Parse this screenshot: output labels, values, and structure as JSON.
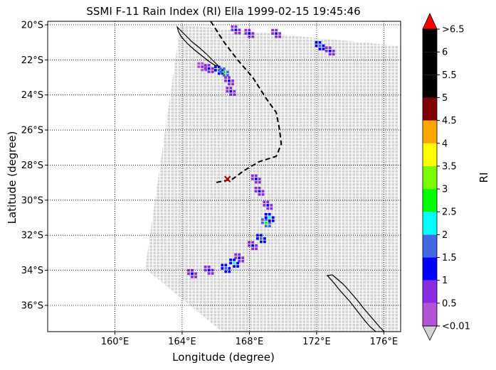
{
  "chart_data": {
    "type": "heatmap",
    "title": "SSMI F-11 Rain Index (RI) Ella 1999-02-15 19:45:46",
    "xlabel": "Longitude (degree)",
    "ylabel": "Latitude (degree)",
    "xlim": [
      156.0,
      177.0
    ],
    "ylim": [
      -37.5,
      -19.8
    ],
    "grid": true,
    "x_ticks": [
      {
        "value": 160,
        "label": "160°E"
      },
      {
        "value": 164,
        "label": "164°E"
      },
      {
        "value": 168,
        "label": "168°E"
      },
      {
        "value": 172,
        "label": "172°E"
      },
      {
        "value": 176,
        "label": "176°E"
      }
    ],
    "y_ticks": [
      {
        "value": -20,
        "label": "20°S"
      },
      {
        "value": -22,
        "label": "22°S"
      },
      {
        "value": -24,
        "label": "24°S"
      },
      {
        "value": -26,
        "label": "26°S"
      },
      {
        "value": -28,
        "label": "28°S"
      },
      {
        "value": -30,
        "label": "30°S"
      },
      {
        "value": -32,
        "label": "32°S"
      },
      {
        "value": -34,
        "label": "34°S"
      },
      {
        "value": -36,
        "label": "36°S"
      }
    ],
    "colorbar": {
      "label": "RI",
      "under_label": "<0.01",
      "over_label": ">6.5",
      "under_color": "#d3d3d3",
      "over_color": "#ff0000",
      "bounds": [
        0.01,
        0.5,
        1,
        1.5,
        2,
        2.5,
        3,
        3.5,
        4,
        4.5,
        5,
        5.5,
        6,
        6.5
      ],
      "tick_labels": [
        "<0.01",
        "0.5",
        "1",
        "1.5",
        "2",
        "2.5",
        "3",
        "3.5",
        "4",
        "4.5",
        "5",
        "5.5",
        "6",
        ">6.5"
      ],
      "colors": [
        "#b452d8",
        "#8a2be2",
        "#0000ff",
        "#4169e1",
        "#00ffff",
        "#00ff00",
        "#7cfc00",
        "#ffff00",
        "#ffa500",
        "#800000",
        "#000000",
        "#000000",
        "#000000"
      ]
    },
    "swath": {
      "corners": [
        {
          "lon": 163.9,
          "lat": -20.0
        },
        {
          "lon": 176.9,
          "lat": -21.2
        },
        {
          "lon": 176.9,
          "lat": -37.6
        },
        {
          "lon": 166.5,
          "lat": -37.6
        },
        {
          "lon": 161.8,
          "lat": -33.9
        }
      ],
      "background_value": "<0.01"
    },
    "rain_areas": [
      {
        "name": "rainband NW",
        "points": [
          {
            "lon": 165.2,
            "lat": -22.4,
            "v": 0.5
          },
          {
            "lon": 165.6,
            "lat": -22.5,
            "v": 1.2
          },
          {
            "lon": 166.2,
            "lat": -22.6,
            "v": 1.8
          },
          {
            "lon": 166.5,
            "lat": -22.7,
            "v": 2.7
          },
          {
            "lon": 166.8,
            "lat": -23.2,
            "v": 1.1
          },
          {
            "lon": 166.9,
            "lat": -23.8,
            "v": 1.2
          }
        ]
      },
      {
        "name": "rainband N",
        "points": [
          {
            "lon": 167.2,
            "lat": -20.3,
            "v": 1.1
          },
          {
            "lon": 168.0,
            "lat": -20.5,
            "v": 1.1
          },
          {
            "lon": 169.6,
            "lat": -20.5,
            "v": 1.2
          },
          {
            "lon": 172.2,
            "lat": -21.2,
            "v": 1.7
          },
          {
            "lon": 172.8,
            "lat": -21.5,
            "v": 1.1
          }
        ]
      },
      {
        "name": "central band",
        "points": [
          {
            "lon": 168.4,
            "lat": -28.8,
            "v": 1.2
          },
          {
            "lon": 168.6,
            "lat": -29.5,
            "v": 1.1
          },
          {
            "lon": 169.1,
            "lat": -30.3,
            "v": 1.2
          },
          {
            "lon": 169.0,
            "lat": -31.3,
            "v": 2.7
          },
          {
            "lon": 169.2,
            "lat": -31.0,
            "v": 2.3
          },
          {
            "lon": 168.7,
            "lat": -32.2,
            "v": 1.7
          },
          {
            "lon": 168.2,
            "lat": -32.6,
            "v": 1.2
          }
        ]
      },
      {
        "name": "southern band",
        "points": [
          {
            "lon": 167.4,
            "lat": -33.3,
            "v": 1.2
          },
          {
            "lon": 167.1,
            "lat": -33.6,
            "v": 2.2
          },
          {
            "lon": 166.6,
            "lat": -33.9,
            "v": 1.7
          },
          {
            "lon": 165.6,
            "lat": -34.0,
            "v": 1.2
          },
          {
            "lon": 164.6,
            "lat": -34.2,
            "v": 1.1
          }
        ]
      }
    ],
    "storm_track": [
      {
        "lon": 165.7,
        "lat": -19.8
      },
      {
        "lon": 166.5,
        "lat": -21.0
      },
      {
        "lon": 167.3,
        "lat": -22.0
      },
      {
        "lon": 168.2,
        "lat": -23.0
      },
      {
        "lon": 169.0,
        "lat": -24.2
      },
      {
        "lon": 169.6,
        "lat": -25.0
      },
      {
        "lon": 169.8,
        "lat": -26.0
      },
      {
        "lon": 169.9,
        "lat": -26.8
      },
      {
        "lon": 169.6,
        "lat": -27.5
      },
      {
        "lon": 168.6,
        "lat": -27.8
      },
      {
        "lon": 167.7,
        "lat": -28.3
      },
      {
        "lon": 167.0,
        "lat": -28.8
      },
      {
        "lon": 166.0,
        "lat": -29.0
      }
    ],
    "storm_position": {
      "lon": 166.7,
      "lat": -28.8
    }
  }
}
